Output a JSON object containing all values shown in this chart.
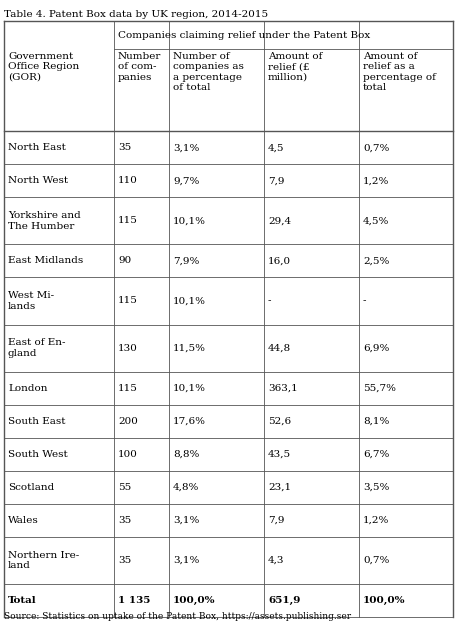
{
  "title": "Table 4. Patent Box data by UK region, 2014-2015",
  "source": "Source: Statistics on uptake of the Patent Box, https://assets.publishing.ser",
  "col_header_main": "Companies claiming relief under the Patent Box",
  "col_headers_row0": [
    "",
    "Government\nOffice Region\n(GOR)",
    "Number\nof com-\npanies",
    "Number of\ncompanies as\na percentage\nof total",
    "Amount of\nrelief (£\nmillion)",
    "Amount of\nrelief as a\npercentage of\ntotal"
  ],
  "rows": [
    [
      "North East",
      "35",
      "3,1%",
      "4,5",
      "0,7%"
    ],
    [
      "North West",
      "110",
      "9,7%",
      "7,9",
      "1,2%"
    ],
    [
      "Yorkshire and\nThe Humber",
      "115",
      "10,1%",
      "29,4",
      "4,5%"
    ],
    [
      "East Midlands",
      "90",
      "7,9%",
      "16,0",
      "2,5%"
    ],
    [
      "West Mi-\nlands",
      "115",
      "10,1%",
      "-",
      "-"
    ],
    [
      "East of En-\ngland",
      "130",
      "11,5%",
      "44,8",
      "6,9%"
    ],
    [
      "London",
      "115",
      "10,1%",
      "363,1",
      "55,7%"
    ],
    [
      "South East",
      "200",
      "17,6%",
      "52,6",
      "8,1%"
    ],
    [
      "South West",
      "100",
      "8,8%",
      "43,5",
      "6,7%"
    ],
    [
      "Scotland",
      "55",
      "4,8%",
      "23,1",
      "3,5%"
    ],
    [
      "Wales",
      "35",
      "3,1%",
      "7,9",
      "1,2%"
    ],
    [
      "Northern Ire-\nland",
      "35",
      "3,1%",
      "4,3",
      "0,7%"
    ],
    [
      "Total",
      "1 135",
      "100,0%",
      "651,9",
      "100,0%"
    ]
  ],
  "bg_color": "#ffffff",
  "line_color": "#555555",
  "text_color": "#000000",
  "fontsize": 7.5,
  "title_fontsize": 7.5,
  "source_fontsize": 6.5
}
